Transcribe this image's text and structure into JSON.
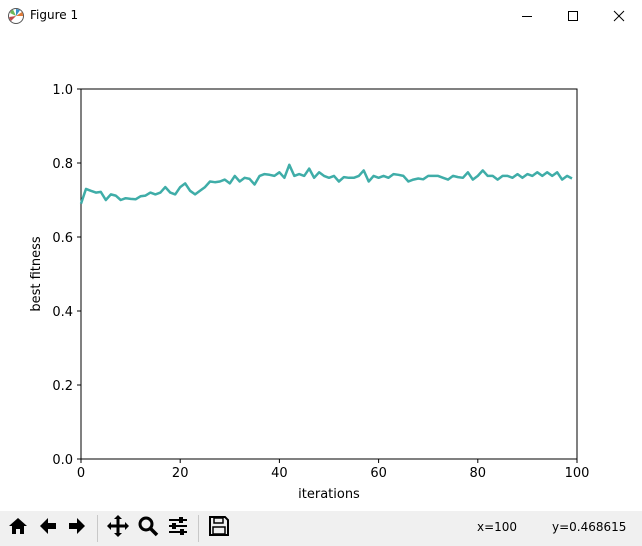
{
  "window": {
    "title": "Figure 1",
    "icon": "matplotlib-logo-icon",
    "controls": [
      "minimize-icon",
      "maximize-icon",
      "close-icon"
    ]
  },
  "chart_data": {
    "type": "line",
    "title": "",
    "xlabel": "iterations",
    "ylabel": "best fitness",
    "xlim": [
      0,
      100
    ],
    "ylim": [
      0.0,
      1.0
    ],
    "xticks": [
      "0",
      "20",
      "40",
      "60",
      "80",
      "100"
    ],
    "yticks": [
      "0.0",
      "0.2",
      "0.4",
      "0.6",
      "0.8",
      "1.0"
    ],
    "grid": false,
    "legend": "none",
    "series": [
      {
        "color": "#3fada8",
        "x": [
          0,
          1,
          2,
          3,
          4,
          5,
          6,
          7,
          8,
          9,
          10,
          11,
          12,
          13,
          14,
          15,
          16,
          17,
          18,
          19,
          20,
          21,
          22,
          23,
          24,
          25,
          26,
          27,
          28,
          29,
          30,
          31,
          32,
          33,
          34,
          35,
          36,
          37,
          38,
          39,
          40,
          41,
          42,
          43,
          44,
          45,
          46,
          47,
          48,
          49,
          50,
          51,
          52,
          53,
          54,
          55,
          56,
          57,
          58,
          59,
          60,
          61,
          62,
          63,
          64,
          65,
          66,
          67,
          68,
          69,
          70,
          71,
          72,
          73,
          74,
          75,
          76,
          77,
          78,
          79,
          80,
          81,
          82,
          83,
          84,
          85,
          86,
          87,
          88,
          89,
          90,
          91,
          92,
          93,
          94,
          95,
          96,
          97,
          98,
          99
        ],
        "y": [
          0.69,
          0.73,
          0.725,
          0.72,
          0.722,
          0.7,
          0.715,
          0.712,
          0.7,
          0.705,
          0.703,
          0.702,
          0.71,
          0.712,
          0.72,
          0.715,
          0.72,
          0.735,
          0.72,
          0.715,
          0.735,
          0.745,
          0.725,
          0.715,
          0.725,
          0.735,
          0.75,
          0.748,
          0.75,
          0.755,
          0.745,
          0.765,
          0.75,
          0.76,
          0.757,
          0.742,
          0.765,
          0.77,
          0.768,
          0.765,
          0.775,
          0.76,
          0.795,
          0.765,
          0.77,
          0.765,
          0.785,
          0.76,
          0.775,
          0.765,
          0.76,
          0.765,
          0.75,
          0.762,
          0.76,
          0.76,
          0.765,
          0.78,
          0.75,
          0.765,
          0.76,
          0.765,
          0.76,
          0.77,
          0.768,
          0.765,
          0.75,
          0.755,
          0.758,
          0.756,
          0.765,
          0.765,
          0.765,
          0.76,
          0.755,
          0.765,
          0.762,
          0.76,
          0.775,
          0.755,
          0.765,
          0.78,
          0.765,
          0.765,
          0.755,
          0.765,
          0.765,
          0.76,
          0.77,
          0.76,
          0.77,
          0.765,
          0.775,
          0.765,
          0.775,
          0.765,
          0.775,
          0.755,
          0.765,
          0.758
        ]
      }
    ]
  },
  "toolbar": {
    "buttons": [
      {
        "name": "home-icon"
      },
      {
        "name": "back-arrow-icon"
      },
      {
        "name": "forward-arrow-icon"
      },
      {
        "name": "pan-icon"
      },
      {
        "name": "zoom-icon"
      },
      {
        "name": "subplots-config-icon"
      },
      {
        "name": "save-icon"
      }
    ],
    "coord_x": "x=100",
    "coord_y": "y=0.468615"
  }
}
